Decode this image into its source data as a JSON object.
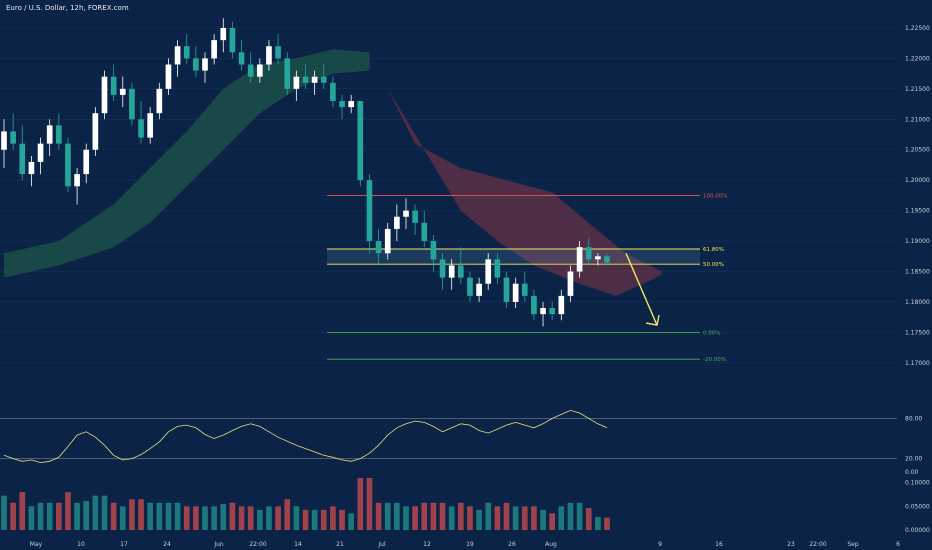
{
  "header": {
    "title": "Euro / U.S. Dollar, 12h, FOREX.com"
  },
  "chart_data": {
    "type": "candlestick",
    "symbol": "Euro / U.S. Dollar",
    "timeframe": "12h",
    "source": "FOREX.com",
    "price_axis": {
      "ticks": [
        "1.22500",
        "1.22000",
        "1.21500",
        "1.21000",
        "1.20500",
        "1.20000",
        "1.19500",
        "1.19000",
        "1.18500",
        "1.18000",
        "1.17500",
        "1.17000"
      ],
      "range": [
        1.1685,
        1.2268
      ]
    },
    "time_axis": {
      "labels": [
        "May",
        "10",
        "17",
        "24",
        "Jun",
        "22:00",
        "14",
        "21",
        "Jul",
        "12",
        "19",
        "26",
        "Aug",
        "9",
        "16",
        "23",
        "22:00",
        "Sep",
        "6"
      ]
    },
    "candles": [
      [
        1.205,
        1.21,
        1.202,
        1.208
      ],
      [
        1.208,
        1.211,
        1.205,
        1.206
      ],
      [
        1.206,
        1.209,
        1.2,
        1.201
      ],
      [
        1.201,
        1.204,
        1.199,
        1.203
      ],
      [
        1.203,
        1.207,
        1.201,
        1.206
      ],
      [
        1.206,
        1.21,
        1.204,
        1.209
      ],
      [
        1.209,
        1.211,
        1.205,
        1.206
      ],
      [
        1.206,
        1.207,
        1.198,
        1.199
      ],
      [
        1.199,
        1.202,
        1.196,
        1.201
      ],
      [
        1.201,
        1.206,
        1.1995,
        1.205
      ],
      [
        1.205,
        1.212,
        1.204,
        1.211
      ],
      [
        1.211,
        1.218,
        1.21,
        1.217
      ],
      [
        1.217,
        1.219,
        1.213,
        1.214
      ],
      [
        1.214,
        1.217,
        1.212,
        1.215
      ],
      [
        1.215,
        1.216,
        1.209,
        1.21
      ],
      [
        1.21,
        1.213,
        1.206,
        1.207
      ],
      [
        1.207,
        1.212,
        1.206,
        1.211
      ],
      [
        1.211,
        1.216,
        1.21,
        1.215
      ],
      [
        1.215,
        1.22,
        1.214,
        1.219
      ],
      [
        1.219,
        1.223,
        1.217,
        1.222
      ],
      [
        1.222,
        1.224,
        1.219,
        1.22
      ],
      [
        1.22,
        1.222,
        1.217,
        1.218
      ],
      [
        1.218,
        1.221,
        1.216,
        1.22
      ],
      [
        1.22,
        1.224,
        1.219,
        1.223
      ],
      [
        1.223,
        1.2266,
        1.221,
        1.225
      ],
      [
        1.225,
        1.226,
        1.22,
        1.221
      ],
      [
        1.221,
        1.223,
        1.218,
        1.219
      ],
      [
        1.219,
        1.221,
        1.216,
        1.217
      ],
      [
        1.217,
        1.22,
        1.216,
        1.219
      ],
      [
        1.219,
        1.223,
        1.218,
        1.222
      ],
      [
        1.222,
        1.224,
        1.219,
        1.22
      ],
      [
        1.22,
        1.221,
        1.214,
        1.215
      ],
      [
        1.215,
        1.218,
        1.213,
        1.217
      ],
      [
        1.217,
        1.219,
        1.215,
        1.216
      ],
      [
        1.216,
        1.218,
        1.214,
        1.217
      ],
      [
        1.217,
        1.219,
        1.215,
        1.216
      ],
      [
        1.216,
        1.217,
        1.212,
        1.213
      ],
      [
        1.213,
        1.214,
        1.21,
        1.212
      ],
      [
        1.212,
        1.214,
        1.211,
        1.213
      ],
      [
        1.213,
        1.213,
        1.199,
        1.2
      ],
      [
        1.2,
        1.201,
        1.188,
        1.19
      ],
      [
        1.19,
        1.192,
        1.186,
        1.188
      ],
      [
        1.188,
        1.193,
        1.187,
        1.192
      ],
      [
        1.192,
        1.196,
        1.19,
        1.194
      ],
      [
        1.194,
        1.197,
        1.192,
        1.195
      ],
      [
        1.195,
        1.196,
        1.191,
        1.193
      ],
      [
        1.193,
        1.195,
        1.189,
        1.19
      ],
      [
        1.19,
        1.191,
        1.185,
        1.187
      ],
      [
        1.187,
        1.188,
        1.182,
        1.184
      ],
      [
        1.184,
        1.187,
        1.182,
        1.186
      ],
      [
        1.186,
        1.189,
        1.183,
        1.184
      ],
      [
        1.184,
        1.185,
        1.18,
        1.181
      ],
      [
        1.181,
        1.184,
        1.18,
        1.183
      ],
      [
        1.183,
        1.188,
        1.182,
        1.187
      ],
      [
        1.187,
        1.188,
        1.183,
        1.184
      ],
      [
        1.184,
        1.185,
        1.179,
        1.18
      ],
      [
        1.18,
        1.184,
        1.179,
        1.183
      ],
      [
        1.183,
        1.185,
        1.18,
        1.181
      ],
      [
        1.181,
        1.182,
        1.177,
        1.178
      ],
      [
        1.178,
        1.18,
        1.176,
        1.179
      ],
      [
        1.179,
        1.18,
        1.177,
        1.178
      ],
      [
        1.178,
        1.182,
        1.177,
        1.181
      ],
      [
        1.181,
        1.186,
        1.18,
        1.185
      ],
      [
        1.185,
        1.19,
        1.184,
        1.189
      ],
      [
        1.189,
        1.1905,
        1.186,
        1.187
      ],
      [
        1.187,
        1.188,
        1.186,
        1.1875
      ],
      [
        1.1875,
        1.1878,
        1.186,
        1.1865
      ]
    ],
    "fibonacci": [
      {
        "label": "100.00%",
        "price": 1.1975,
        "color": "#ef5350"
      },
      {
        "label": "61.80%",
        "price": 1.1887,
        "color": "#f5e663"
      },
      {
        "label": "50.00%",
        "price": 1.1862,
        "color": "#f5e663"
      },
      {
        "label": "0.00%",
        "price": 1.175,
        "color": "#4caf50"
      },
      {
        "label": "-20.00%",
        "price": 1.1706,
        "color": "#4caf50"
      }
    ],
    "oscillator": {
      "ticks": [
        "80.00",
        "20.00",
        "0.00"
      ],
      "levels": [
        80,
        20
      ],
      "values": [
        25,
        20,
        16,
        18,
        14,
        16,
        22,
        38,
        55,
        60,
        52,
        40,
        25,
        18,
        20,
        26,
        35,
        45,
        60,
        68,
        70,
        66,
        56,
        50,
        55,
        62,
        68,
        72,
        68,
        60,
        52,
        46,
        40,
        35,
        30,
        25,
        22,
        18,
        16,
        20,
        28,
        40,
        55,
        66,
        72,
        76,
        74,
        68,
        60,
        66,
        72,
        70,
        62,
        58,
        64,
        70,
        74,
        70,
        66,
        72,
        80,
        86,
        92,
        88,
        80,
        72,
        66
      ]
    },
    "volume_axis": {
      "ticks": [
        "0.10000",
        "0.05000",
        "0.00000"
      ]
    }
  }
}
